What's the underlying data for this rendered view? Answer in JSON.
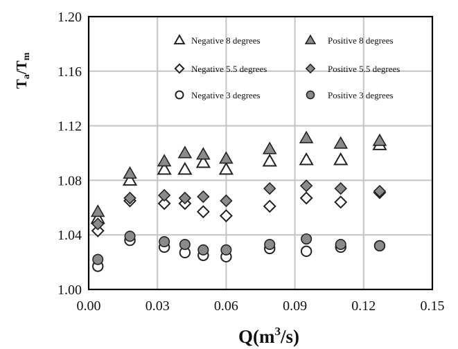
{
  "chart_data": {
    "type": "scatter",
    "title": "",
    "xlabel": {
      "base": "Q(m",
      "sup": "3",
      "tail": "/s)"
    },
    "ylabel": {
      "a": "T",
      "a_sub": "a",
      "slash": "/T",
      "m_sub": "m"
    },
    "xlim": [
      0.0,
      0.15
    ],
    "ylim": [
      1.0,
      1.2
    ],
    "x_ticks": [
      "0.00",
      "0.03",
      "0.06",
      "0.09",
      "0.12",
      "0.15"
    ],
    "x_tick_values": [
      0.0,
      0.03,
      0.06,
      0.09,
      0.12,
      0.15
    ],
    "y_ticks": [
      "1.00",
      "1.04",
      "1.08",
      "1.12",
      "1.16",
      "1.20"
    ],
    "y_tick_values": [
      1.0,
      1.04,
      1.08,
      1.12,
      1.16,
      1.2
    ],
    "grid": true,
    "legend_position": "inside-top",
    "series": [
      {
        "name": "Negative 8 degrees",
        "marker": "triangle",
        "fill": "none",
        "x": [
          0.004,
          0.018,
          0.033,
          0.042,
          0.05,
          0.06,
          0.079,
          0.095,
          0.11,
          0.127
        ],
        "y": [
          1.052,
          1.08,
          1.088,
          1.088,
          1.093,
          1.088,
          1.094,
          1.095,
          1.095,
          1.106
        ]
      },
      {
        "name": "Positive 8 degrees",
        "marker": "triangle",
        "fill": "#8a8a8a",
        "x": [
          0.004,
          0.018,
          0.033,
          0.042,
          0.05,
          0.06,
          0.079,
          0.095,
          0.11,
          0.127
        ],
        "y": [
          1.057,
          1.085,
          1.094,
          1.1,
          1.099,
          1.096,
          1.103,
          1.111,
          1.107,
          1.109
        ]
      },
      {
        "name": "Negative 5.5 degrees",
        "marker": "diamond",
        "fill": "none",
        "x": [
          0.004,
          0.018,
          0.033,
          0.042,
          0.05,
          0.06,
          0.079,
          0.095,
          0.11,
          0.127
        ],
        "y": [
          1.043,
          1.065,
          1.063,
          1.063,
          1.057,
          1.054,
          1.061,
          1.067,
          1.064,
          1.071
        ]
      },
      {
        "name": "Positive 5.5 degrees",
        "marker": "diamond",
        "fill": "#8a8a8a",
        "x": [
          0.004,
          0.018,
          0.033,
          0.042,
          0.05,
          0.06,
          0.079,
          0.095,
          0.11,
          0.127
        ],
        "y": [
          1.048,
          1.067,
          1.069,
          1.067,
          1.068,
          1.065,
          1.074,
          1.076,
          1.074,
          1.072
        ]
      },
      {
        "name": "Negative 3 degrees",
        "marker": "circle",
        "fill": "none",
        "x": [
          0.004,
          0.018,
          0.033,
          0.042,
          0.05,
          0.06,
          0.079,
          0.095,
          0.11,
          0.127
        ],
        "y": [
          1.017,
          1.036,
          1.031,
          1.027,
          1.025,
          1.024,
          1.03,
          1.028,
          1.031,
          1.032
        ]
      },
      {
        "name": "Positive 3 degrees",
        "marker": "circle",
        "fill": "#8a8a8a",
        "x": [
          0.004,
          0.018,
          0.033,
          0.042,
          0.05,
          0.06,
          0.079,
          0.095,
          0.11,
          0.127
        ],
        "y": [
          1.022,
          1.039,
          1.035,
          1.033,
          1.029,
          1.029,
          1.033,
          1.037,
          1.033,
          1.032
        ]
      }
    ],
    "colors": {
      "grid": "#c4c4c4",
      "frame": "#000000",
      "filled_marker": "#8a8a8a",
      "marker_stroke": "#222222"
    }
  }
}
